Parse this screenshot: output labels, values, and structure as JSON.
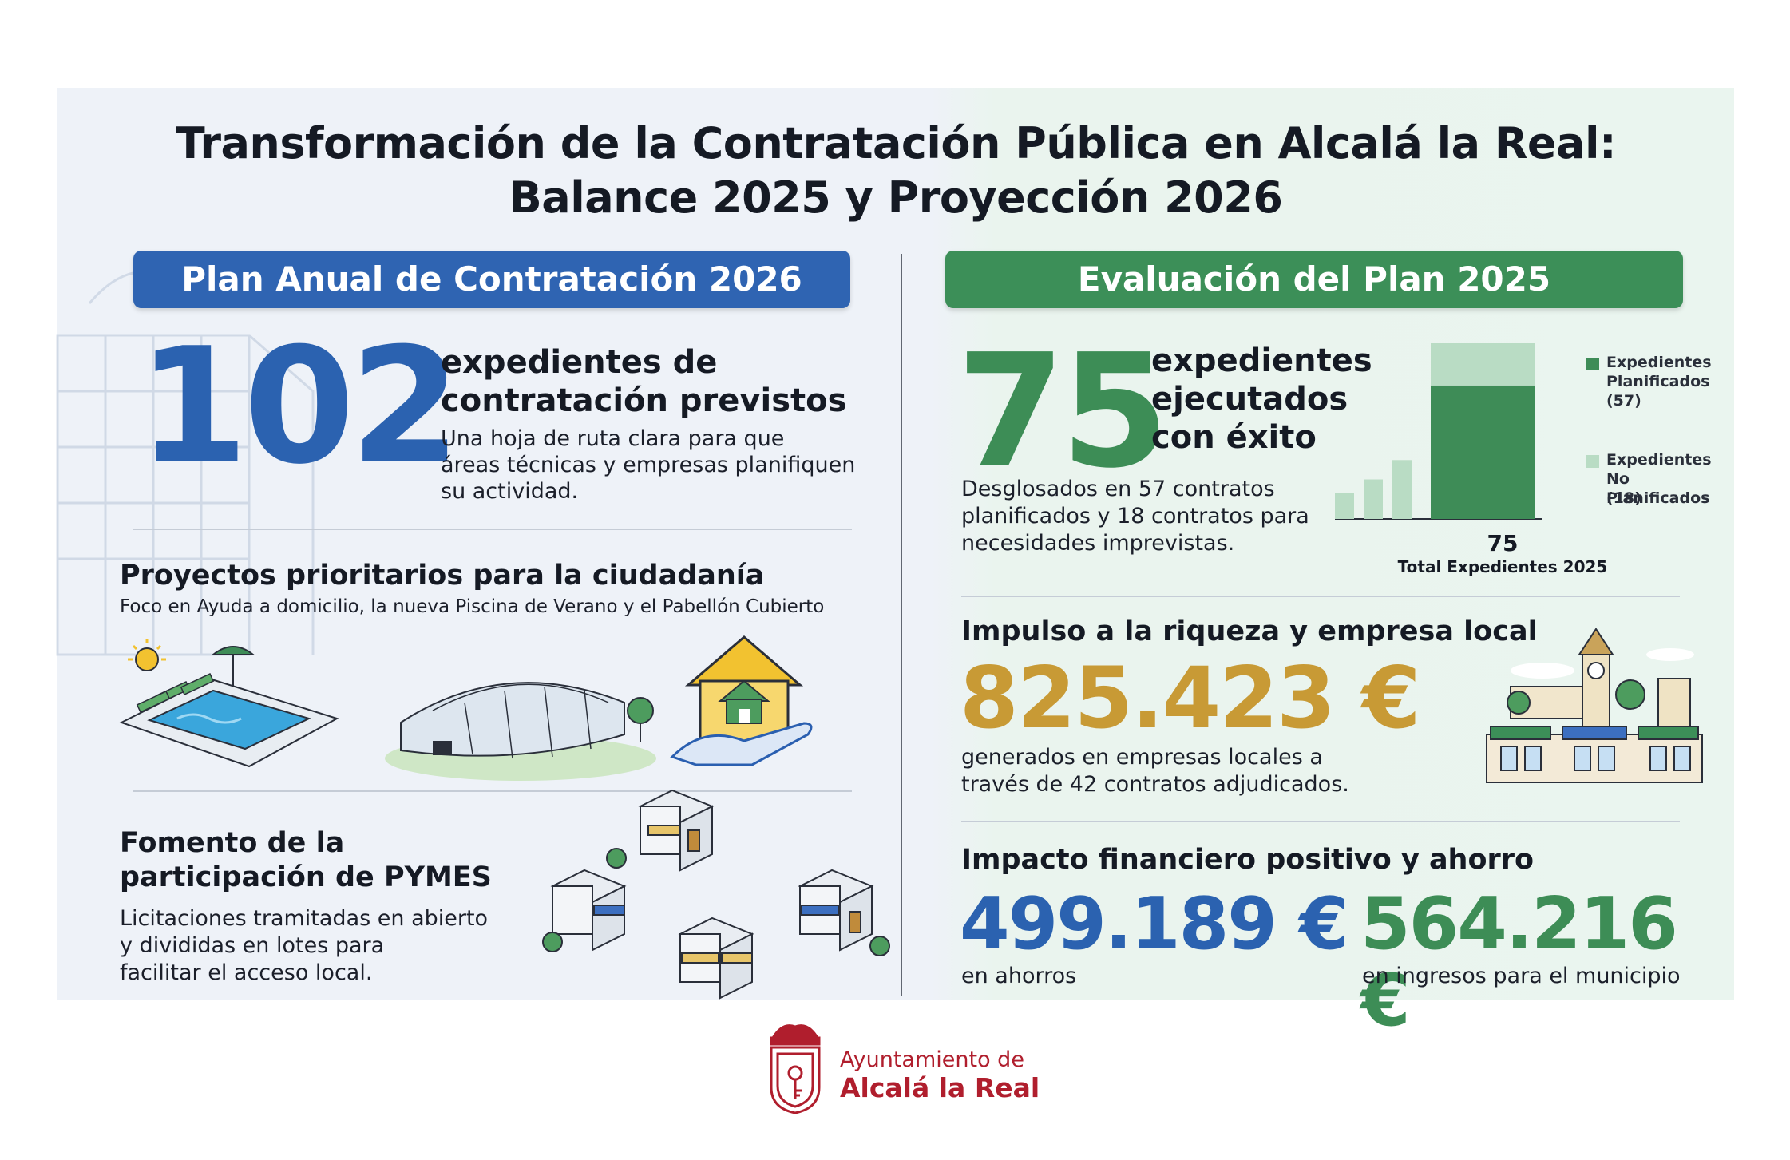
{
  "title": {
    "line1": "Transformación de la Contratación Pública en Alcalá la Real:",
    "line2": "Balance 2025 y Proyección 2026"
  },
  "left": {
    "banner": "Plan Anual de Contratación 2026",
    "big_number": "102",
    "heading_line1": "expedientes de",
    "heading_line2": "contratación previstos",
    "desc_line1": "Una hoja de ruta clara para que",
    "desc_line2": "áreas técnicas y empresas planifiquen",
    "desc_line3": "su actividad.",
    "projects_title": "Proyectos prioritarios para la ciudadanía",
    "projects_sub": "Foco en Ayuda a domicilio, la nueva Piscina de Verano y el Pabellón Cubierto",
    "pymes_title_line1": "Fomento de la",
    "pymes_title_line2": "participación de PYMES",
    "pymes_desc_line1": "Licitaciones tramitadas en abierto",
    "pymes_desc_line2": "y divididas en lotes para",
    "pymes_desc_line3": "facilitar el acceso local.",
    "icons": [
      "pool-icon",
      "pavilion-icon",
      "home-care-icon",
      "small-shops-icon"
    ]
  },
  "right": {
    "banner": "Evaluación del Plan 2025",
    "big_number": "75",
    "heading_line1": "expedientes",
    "heading_line2": "ejecutados",
    "heading_line3": "con éxito",
    "desc_line1": "Desglosados en 57 contratos",
    "desc_line2": "planificados y 18 contratos para",
    "desc_line3": "necesidades imprevistas.",
    "wealth_title": "Impulso a la riqueza y empresa local",
    "wealth_amount": "825.423 €",
    "wealth_desc_line1": "generados en empresas locales a",
    "wealth_desc_line2": "través de 42 contratos adjudicados.",
    "impact_title": "Impacto financiero positivo y ahorro",
    "savings_amount": "499.189 €",
    "savings_label": "en ahorros",
    "income_amount": "564.216 €",
    "income_label": "en ingresos para el municipio",
    "icons": [
      "town-icon"
    ]
  },
  "chart_data": {
    "type": "bar",
    "total_label": "75",
    "xlabel": "Total Expedientes 2025",
    "stack": [
      {
        "name": "Expedientes Planificados (57)",
        "value": 57,
        "color": "#3e8c57"
      },
      {
        "name": "Expedientes No Planificados (18)",
        "value": 18,
        "color": "#b9dcc4"
      }
    ],
    "legend": [
      {
        "line1": "Expedientes",
        "line2": "Planificados",
        "line3": "(57)",
        "color": "#3e8c57"
      },
      {
        "line1": "Expedientes",
        "line2": "No Planificados",
        "line3": "(18)",
        "color": "#b9dcc4"
      }
    ],
    "legend_position": "right",
    "decorative_bar_levels": [
      0.3,
      0.45,
      0.67
    ]
  },
  "footer": {
    "line1": "Ayuntamiento de",
    "line2": "Alcalá la Real",
    "brand_color": "#b01e2d"
  },
  "colors": {
    "blue": "#2f64b2",
    "green": "#3c8f58",
    "gold": "#c89a35"
  }
}
